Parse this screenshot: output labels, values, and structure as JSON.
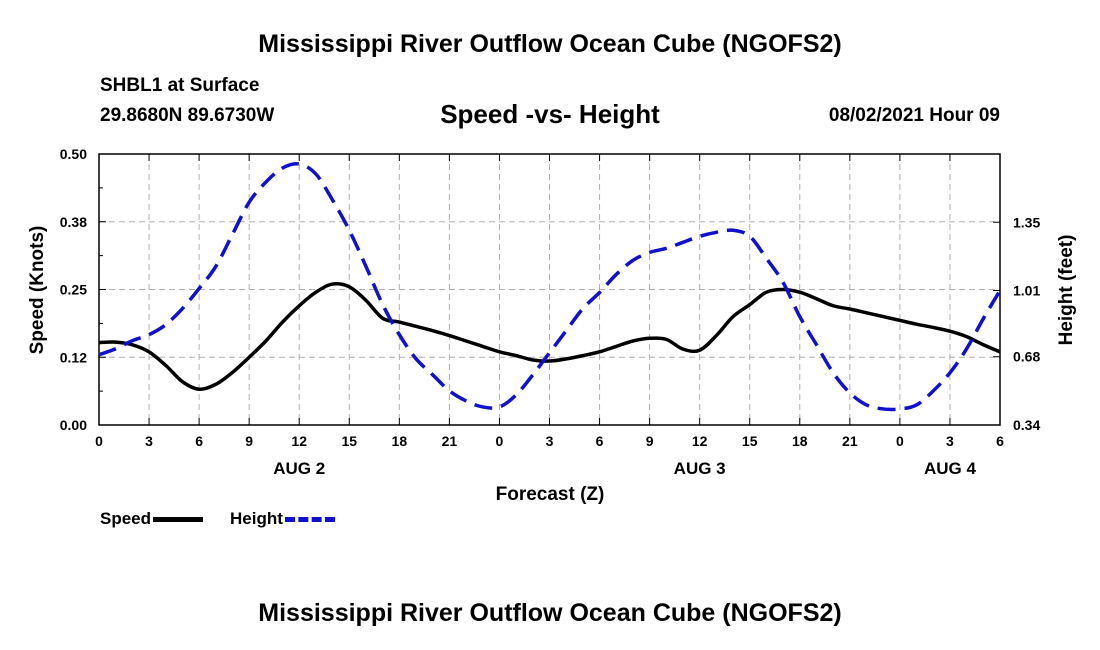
{
  "header": {
    "title": "Mississippi River Outflow Ocean Cube (NGOFS2)",
    "station": "SHBL1 at Surface",
    "coords": "29.8680N  89.6730W",
    "datetime": "08/02/2021 Hour 09"
  },
  "footer": {
    "title": "Mississippi River Outflow Ocean Cube (NGOFS2)"
  },
  "legend": {
    "speed": "Speed",
    "height": "Height"
  },
  "colors": {
    "speed": "#000000",
    "height": "#1010d0",
    "grid": "#b0b0b0"
  },
  "chart_data": {
    "type": "line",
    "title": "Speed -vs- Height",
    "xlabel": "Forecast (Z)",
    "ylabel_left": "Speed (Knots)",
    "ylabel_right": "Height (feet)",
    "xlim": [
      0,
      54
    ],
    "ylim_left": [
      0,
      0.5
    ],
    "ylim_right": [
      0.34,
      1.69
    ],
    "x_ticks": [
      0,
      3,
      6,
      9,
      12,
      15,
      18,
      21,
      24,
      27,
      30,
      33,
      36,
      39,
      42,
      45,
      48,
      51,
      54
    ],
    "x_tick_labels": [
      "0",
      "3",
      "6",
      "9",
      "12",
      "15",
      "18",
      "21",
      "0",
      "3",
      "6",
      "9",
      "12",
      "15",
      "18",
      "21",
      "0",
      "3",
      "6"
    ],
    "date_labels": [
      {
        "x": 12,
        "label": "AUG 2"
      },
      {
        "x": 36,
        "label": "AUG 3"
      },
      {
        "x": 51,
        "label": "AUG 4"
      }
    ],
    "y_left_ticks": [
      0,
      0.125,
      0.25,
      0.375,
      0.5
    ],
    "y_left_tick_labels": [
      "0.00",
      "0.12",
      "0.25",
      "0.38",
      "0.50"
    ],
    "y_right_ticks": [
      0.34,
      0.68,
      1.01,
      1.35
    ],
    "y_right_tick_labels": [
      "0.34",
      "0.68",
      "1.01",
      "1.35"
    ],
    "series": [
      {
        "name": "Speed",
        "axis": "left",
        "style": "solid",
        "x": [
          0,
          1,
          2,
          3,
          4,
          5,
          6,
          7,
          8,
          9,
          10,
          11,
          12,
          13,
          14,
          15,
          16,
          17,
          18,
          19,
          20,
          21,
          22,
          23,
          24,
          25,
          26,
          27,
          28,
          29,
          30,
          31,
          32,
          33,
          34,
          35,
          36,
          37,
          38,
          39,
          40,
          41,
          42,
          43,
          44,
          45,
          46,
          47,
          48,
          49,
          50,
          51,
          52,
          53,
          54
        ],
        "values": [
          0.152,
          0.153,
          0.148,
          0.135,
          0.11,
          0.08,
          0.066,
          0.075,
          0.097,
          0.125,
          0.155,
          0.19,
          0.22,
          0.245,
          0.26,
          0.255,
          0.23,
          0.197,
          0.19,
          0.182,
          0.174,
          0.165,
          0.155,
          0.145,
          0.135,
          0.128,
          0.12,
          0.118,
          0.122,
          0.128,
          0.135,
          0.145,
          0.155,
          0.16,
          0.158,
          0.14,
          0.138,
          0.165,
          0.2,
          0.222,
          0.245,
          0.25,
          0.245,
          0.233,
          0.22,
          0.214,
          0.207,
          0.2,
          0.193,
          0.186,
          0.18,
          0.173,
          0.163,
          0.148,
          0.135
        ]
      },
      {
        "name": "Height",
        "axis": "right",
        "style": "dashed",
        "x": [
          0,
          1,
          2,
          3,
          4,
          5,
          6,
          7,
          8,
          9,
          10,
          11,
          12,
          13,
          14,
          15,
          16,
          17,
          18,
          19,
          20,
          21,
          22,
          23,
          24,
          25,
          26,
          27,
          28,
          29,
          30,
          31,
          32,
          33,
          34,
          35,
          36,
          37,
          38,
          39,
          40,
          41,
          42,
          43,
          44,
          45,
          46,
          47,
          48,
          49,
          50,
          51,
          52,
          53,
          54
        ],
        "values": [
          0.69,
          0.72,
          0.76,
          0.79,
          0.84,
          0.92,
          1.02,
          1.13,
          1.29,
          1.45,
          1.55,
          1.62,
          1.64,
          1.59,
          1.46,
          1.31,
          1.13,
          0.94,
          0.79,
          0.67,
          0.59,
          0.51,
          0.46,
          0.43,
          0.43,
          0.49,
          0.59,
          0.7,
          0.81,
          0.92,
          1.0,
          1.09,
          1.16,
          1.2,
          1.22,
          1.25,
          1.28,
          1.3,
          1.31,
          1.28,
          1.17,
          1.05,
          0.88,
          0.74,
          0.6,
          0.5,
          0.44,
          0.42,
          0.42,
          0.44,
          0.51,
          0.6,
          0.72,
          0.87,
          1.01
        ]
      }
    ]
  }
}
